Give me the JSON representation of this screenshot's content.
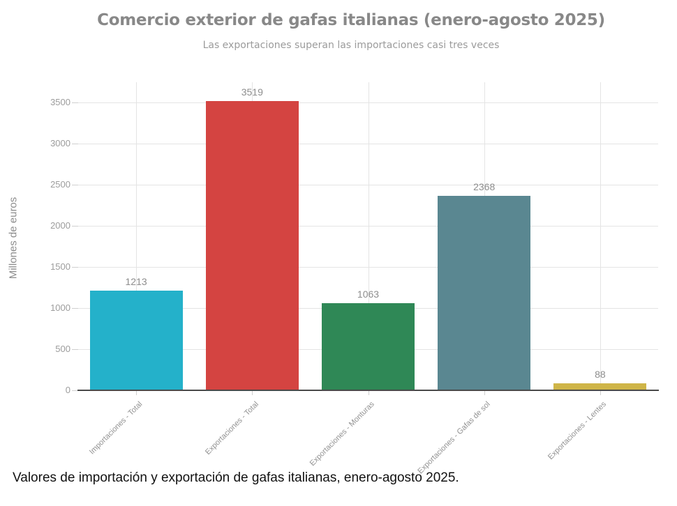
{
  "caption": "Valores de importación y exportación de gafas italianas, enero-agosto 2025.",
  "chart_data": {
    "type": "bar",
    "title": "Comercio exterior de gafas italianas (enero-agosto 2025)",
    "subtitle": "Las exportaciones superan las importaciones casi tres veces",
    "xlabel": "",
    "ylabel": "Millones de euros",
    "categories": [
      "Importaciones - Total",
      "Exportaciones - Total",
      "Exportaciones - Monturas",
      "Exportaciones - Gafas de sol",
      "Exportaciones - Lentes"
    ],
    "values": [
      1213,
      3519,
      1063,
      2368,
      88
    ],
    "bar_colors": [
      "#24b1ca",
      "#d44441",
      "#2f8856",
      "#5a8791",
      "#cfb548"
    ],
    "ylim": [
      0,
      3500
    ],
    "ytick_step": 500,
    "grid": true,
    "legend": false
  }
}
